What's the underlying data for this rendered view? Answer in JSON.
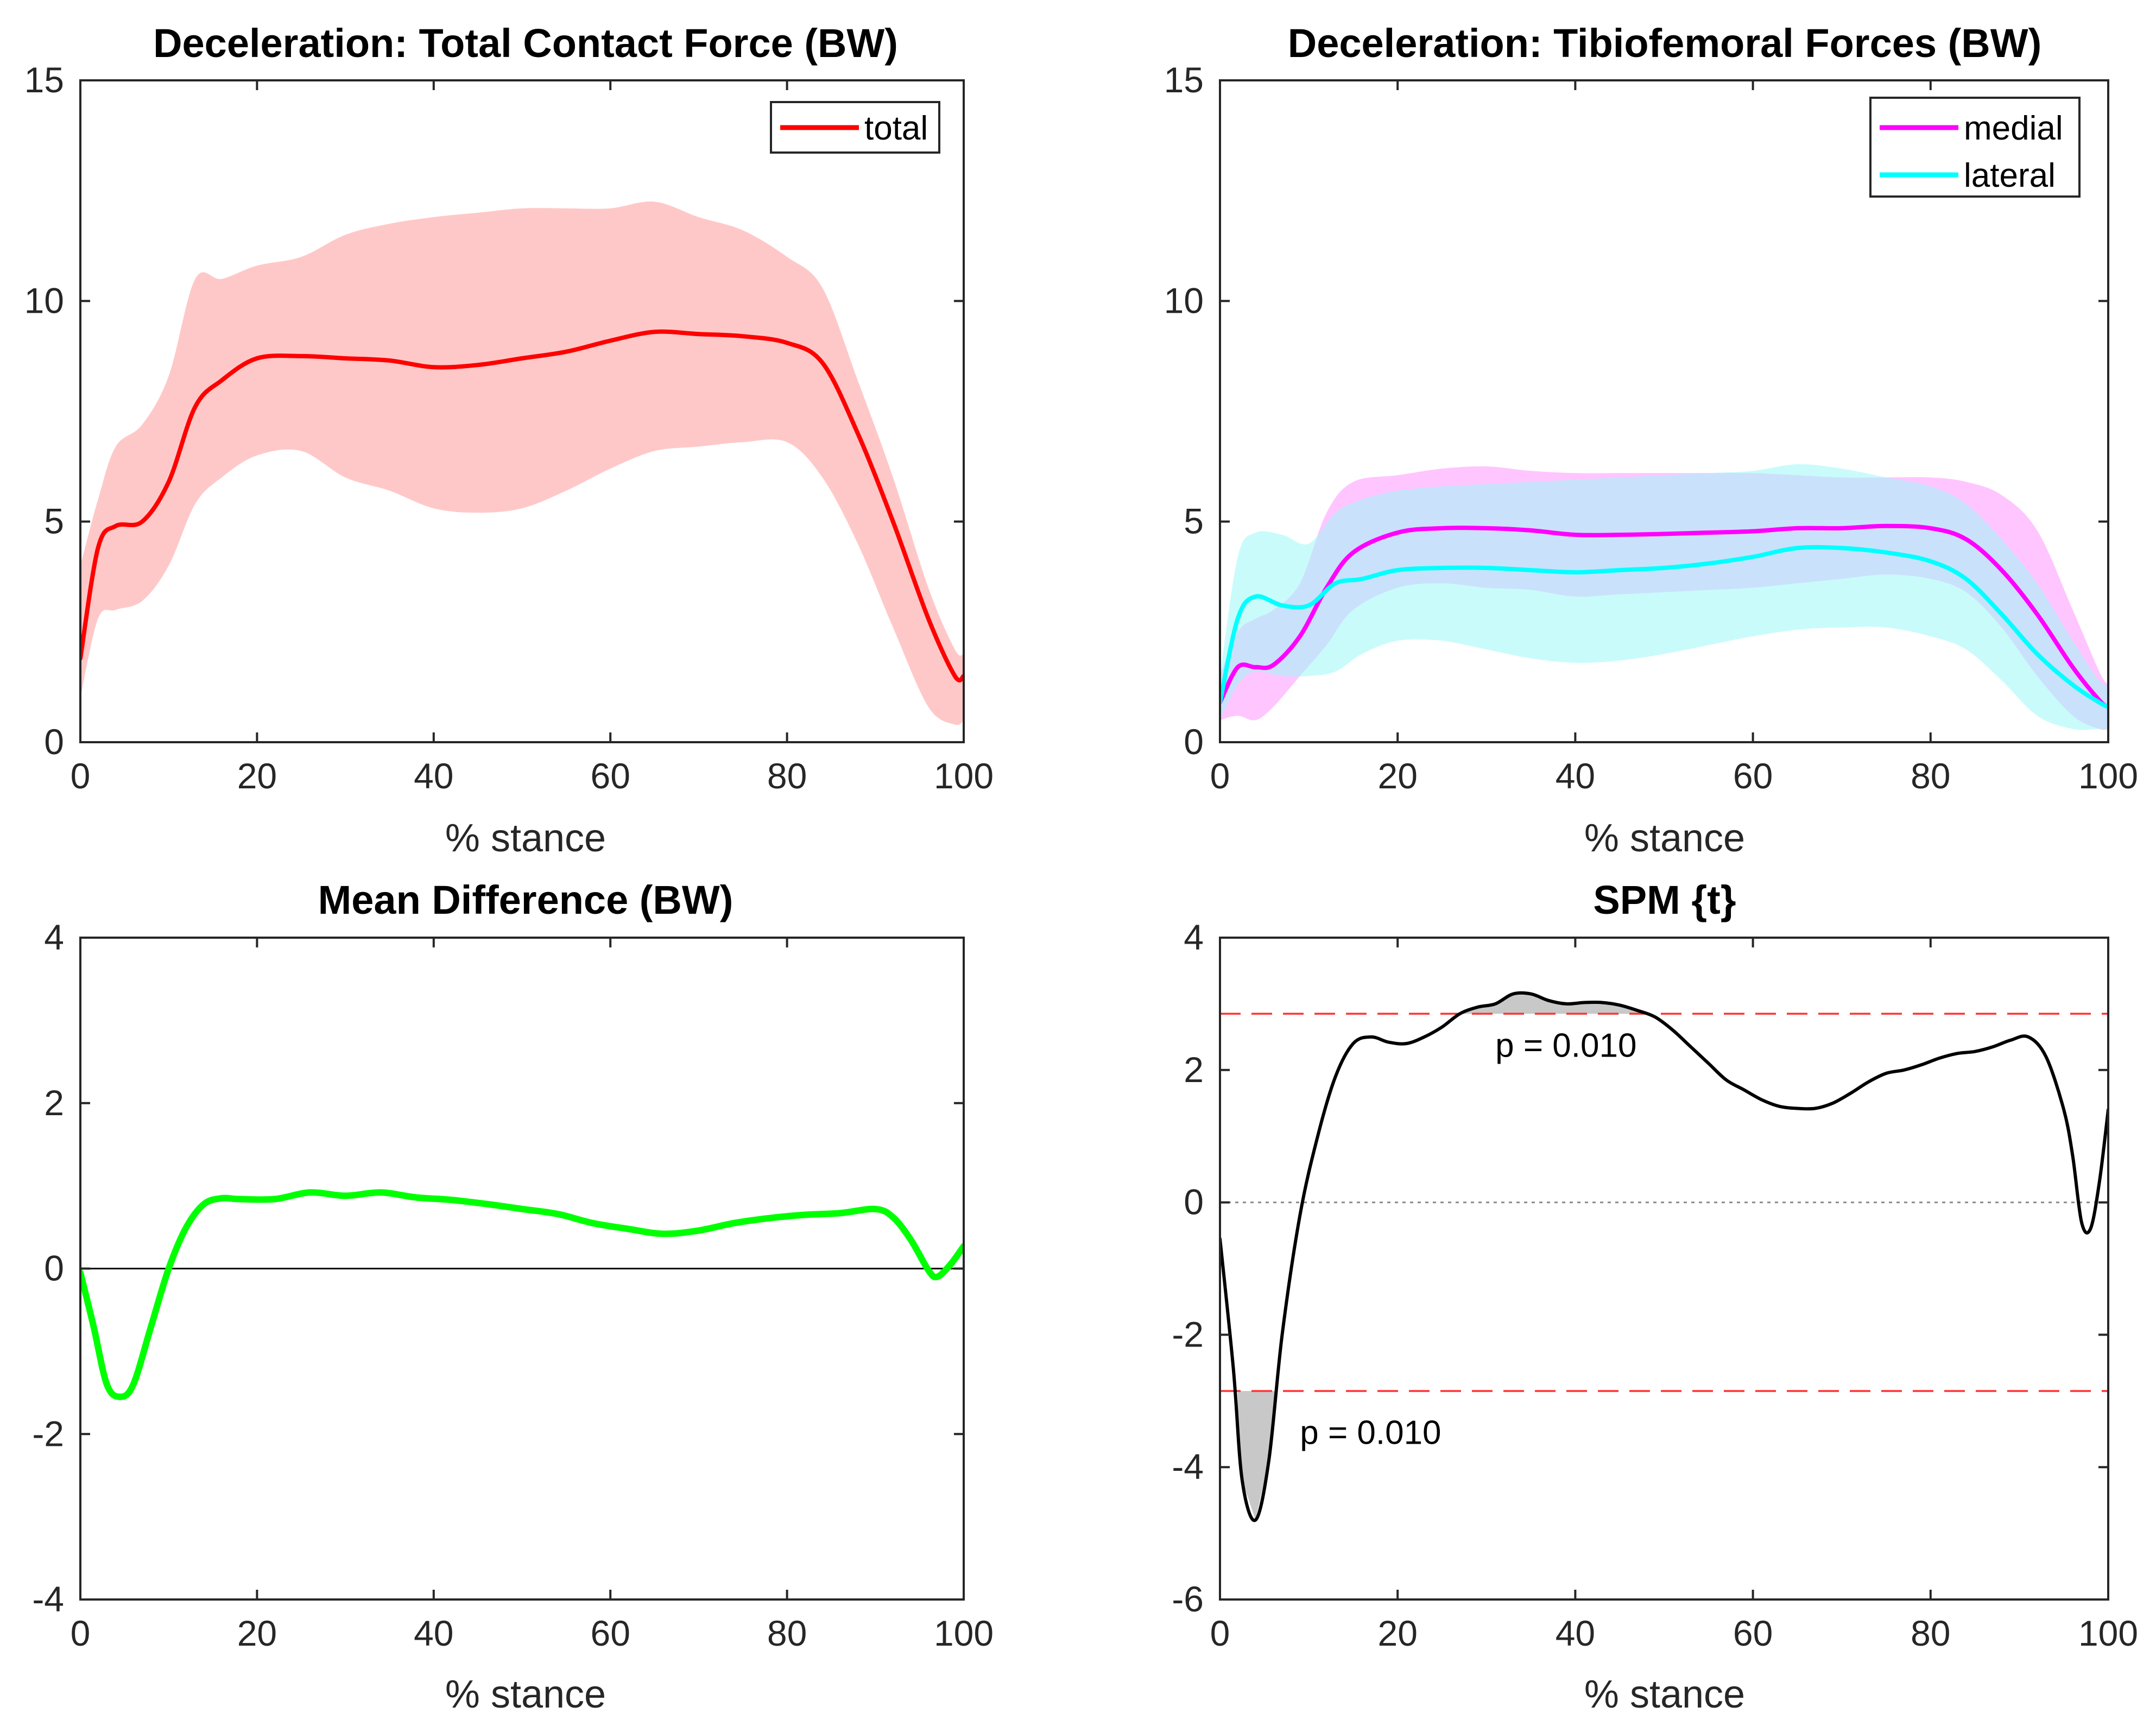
{
  "chart_data": [
    {
      "type": "line",
      "title": "Deceleration: Total Contact Force (BW)",
      "xlabel": "% stance",
      "ylabel": "",
      "xlim": [
        0,
        100
      ],
      "ylim": [
        0,
        15
      ],
      "xticks": [
        0,
        20,
        40,
        60,
        80,
        100
      ],
      "yticks": [
        0,
        5,
        10,
        15
      ],
      "legend_position": "top-right",
      "grid": false,
      "series": [
        {
          "name": "total",
          "color": "#ff0000",
          "band_color": "#ffc8c8",
          "x": [
            0,
            2,
            4,
            7,
            10,
            13,
            16,
            20,
            25,
            30,
            35,
            40,
            45,
            50,
            55,
            60,
            65,
            70,
            75,
            80,
            84,
            88,
            92,
            96,
            99,
            100
          ],
          "mean": [
            1.9,
            4.4,
            4.9,
            5.0,
            5.9,
            7.6,
            8.2,
            8.7,
            8.75,
            8.7,
            8.65,
            8.5,
            8.55,
            8.7,
            8.85,
            9.1,
            9.3,
            9.25,
            9.2,
            9.05,
            8.6,
            7.0,
            5.0,
            2.8,
            1.5,
            1.5
          ],
          "upper": [
            4.0,
            5.5,
            6.7,
            7.2,
            8.3,
            10.5,
            10.5,
            10.8,
            11.0,
            11.5,
            11.75,
            11.9,
            12.0,
            12.1,
            12.1,
            12.1,
            12.25,
            11.9,
            11.6,
            11.0,
            10.3,
            8.2,
            6.0,
            3.5,
            2.1,
            2.0
          ],
          "lower": [
            1.0,
            2.8,
            3.0,
            3.2,
            4.0,
            5.4,
            6.0,
            6.5,
            6.6,
            6.0,
            5.7,
            5.3,
            5.2,
            5.3,
            5.7,
            6.2,
            6.6,
            6.7,
            6.8,
            6.8,
            6.0,
            4.5,
            2.6,
            0.8,
            0.4,
            0.5
          ]
        }
      ]
    },
    {
      "type": "line",
      "title": "Deceleration: Tibiofemoral Forces (BW)",
      "xlabel": "% stance",
      "ylabel": "",
      "xlim": [
        0,
        100
      ],
      "ylim": [
        0,
        15
      ],
      "xticks": [
        0,
        20,
        40,
        60,
        80,
        100
      ],
      "yticks": [
        0,
        5,
        10,
        15
      ],
      "legend_position": "top-right",
      "grid": false,
      "series": [
        {
          "name": "medial",
          "color": "#ff00ff",
          "band_color": "#ff96ff",
          "x": [
            0,
            2,
            4,
            6,
            9,
            12,
            15,
            20,
            25,
            30,
            35,
            40,
            45,
            50,
            55,
            60,
            65,
            70,
            75,
            80,
            84,
            88,
            92,
            96,
            99,
            100
          ],
          "mean": [
            0.9,
            1.7,
            1.7,
            1.75,
            2.4,
            3.5,
            4.3,
            4.75,
            4.85,
            4.85,
            4.8,
            4.7,
            4.7,
            4.72,
            4.75,
            4.78,
            4.85,
            4.85,
            4.9,
            4.85,
            4.6,
            3.9,
            2.9,
            1.7,
            0.95,
            0.8
          ],
          "upper": [
            1.5,
            2.5,
            2.8,
            3.0,
            3.6,
            5.2,
            5.9,
            6.05,
            6.2,
            6.25,
            6.15,
            6.1,
            6.1,
            6.1,
            6.1,
            6.1,
            6.05,
            6.0,
            6.0,
            6.0,
            5.9,
            5.6,
            4.8,
            3.0,
            1.6,
            1.3
          ],
          "lower": [
            0.5,
            0.6,
            0.5,
            0.8,
            1.5,
            2.2,
            3.0,
            3.5,
            3.6,
            3.5,
            3.45,
            3.3,
            3.35,
            3.4,
            3.45,
            3.5,
            3.6,
            3.7,
            3.8,
            3.7,
            3.4,
            2.6,
            1.5,
            0.6,
            0.3,
            0.3
          ]
        },
        {
          "name": "lateral",
          "color": "#00ffff",
          "band_color": "#9ef7f7",
          "x": [
            0,
            2,
            4,
            7,
            10,
            13,
            16,
            20,
            25,
            30,
            35,
            40,
            45,
            50,
            55,
            60,
            65,
            70,
            75,
            80,
            84,
            88,
            92,
            96,
            99,
            100
          ],
          "mean": [
            0.9,
            2.8,
            3.3,
            3.1,
            3.1,
            3.6,
            3.7,
            3.9,
            3.95,
            3.95,
            3.9,
            3.85,
            3.9,
            3.95,
            4.05,
            4.2,
            4.4,
            4.4,
            4.3,
            4.1,
            3.7,
            2.9,
            2.0,
            1.3,
            0.9,
            0.8
          ],
          "upper": [
            1.5,
            4.2,
            4.75,
            4.7,
            4.5,
            5.2,
            5.5,
            5.7,
            5.8,
            5.85,
            5.9,
            5.95,
            6.0,
            6.05,
            6.1,
            6.15,
            6.3,
            6.2,
            6.0,
            5.8,
            5.4,
            4.6,
            3.6,
            2.3,
            1.4,
            1.3
          ],
          "lower": [
            0.5,
            1.3,
            1.6,
            1.5,
            1.5,
            1.6,
            2.0,
            2.3,
            2.3,
            2.1,
            1.9,
            1.8,
            1.85,
            2.0,
            2.2,
            2.4,
            2.55,
            2.6,
            2.6,
            2.4,
            2.1,
            1.4,
            0.6,
            0.3,
            0.3,
            0.3
          ]
        }
      ]
    },
    {
      "type": "line",
      "title": "Mean Difference (BW)",
      "xlabel": "% stance",
      "ylabel": "",
      "xlim": [
        0,
        100
      ],
      "ylim": [
        -4,
        4
      ],
      "xticks": [
        0,
        20,
        40,
        60,
        80,
        100
      ],
      "yticks": [
        -4,
        -2,
        0,
        2,
        4
      ],
      "zero_line": true,
      "grid": false,
      "series": [
        {
          "color": "#00ff00",
          "x": [
            0,
            1.5,
            3,
            4.5,
            6,
            8,
            10,
            12,
            14,
            16,
            18,
            22,
            26,
            30,
            34,
            38,
            42,
            46,
            50,
            54,
            58,
            62,
            66,
            70,
            74,
            78,
            82,
            86,
            90,
            92,
            94,
            96,
            97,
            98.5,
            100
          ],
          "y": [
            -0.05,
            -0.7,
            -1.4,
            -1.55,
            -1.4,
            -0.7,
            0.0,
            0.5,
            0.78,
            0.85,
            0.84,
            0.84,
            0.92,
            0.88,
            0.92,
            0.86,
            0.83,
            0.78,
            0.72,
            0.66,
            0.55,
            0.48,
            0.42,
            0.46,
            0.55,
            0.61,
            0.65,
            0.67,
            0.72,
            0.62,
            0.35,
            -0.02,
            -0.1,
            0.05,
            0.27
          ]
        }
      ]
    },
    {
      "type": "line",
      "title": "SPM {t}",
      "xlabel": "% stance",
      "ylabel": "",
      "xlim": [
        0,
        100
      ],
      "ylim": [
        -6,
        4
      ],
      "xticks": [
        0,
        20,
        40,
        60,
        80,
        100
      ],
      "yticks": [
        -6,
        -4,
        -2,
        0,
        2,
        4
      ],
      "threshold": 2.85,
      "zero_line": true,
      "grid": false,
      "series": [
        {
          "color": "#000000",
          "x": [
            0,
            1.5,
            2.5,
            4,
            5.5,
            7,
            9,
            11,
            13,
            15,
            17,
            19,
            21,
            23,
            25,
            27,
            29,
            31,
            33,
            35,
            37,
            39,
            41,
            43,
            45,
            47,
            49,
            51,
            53,
            55,
            57,
            59,
            61,
            63,
            65,
            67,
            69,
            71,
            73,
            75,
            77,
            79,
            81,
            83,
            85,
            87,
            89,
            91,
            93,
            95,
            96,
            97,
            98,
            99,
            100
          ],
          "y": [
            -0.55,
            -2.5,
            -4.2,
            -4.8,
            -3.9,
            -2.0,
            -0.2,
            1.0,
            1.9,
            2.4,
            2.5,
            2.42,
            2.4,
            2.5,
            2.65,
            2.85,
            2.95,
            3.0,
            3.15,
            3.15,
            3.05,
            3.0,
            3.02,
            3.02,
            2.98,
            2.9,
            2.8,
            2.6,
            2.35,
            2.1,
            1.85,
            1.7,
            1.55,
            1.45,
            1.42,
            1.42,
            1.5,
            1.65,
            1.82,
            1.95,
            2.0,
            2.08,
            2.18,
            2.25,
            2.28,
            2.35,
            2.45,
            2.5,
            2.2,
            1.4,
            0.7,
            -0.3,
            -0.4,
            0.3,
            1.4
          ]
        }
      ],
      "annotations": [
        {
          "text": "p = 0.010",
          "x": 31,
          "y": 2.2
        },
        {
          "text": "p = 0.010",
          "x": 9,
          "y": -3.65
        }
      ]
    }
  ]
}
